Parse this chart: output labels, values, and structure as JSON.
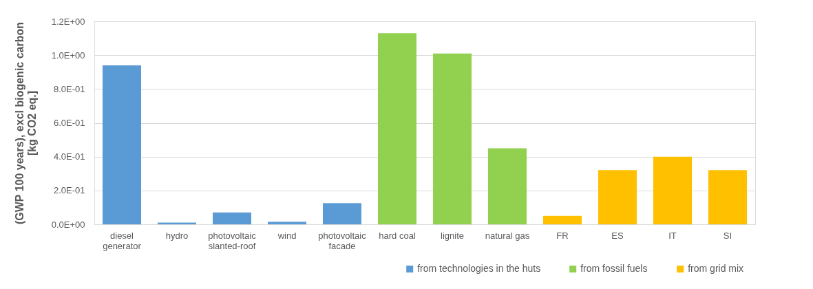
{
  "chart_data": {
    "type": "bar",
    "ylabel": "(GWP 100 years), excl biogenic carbon\n[kg CO2 eq.]",
    "categories": [
      "diesel\ngenerator",
      "hydro",
      "photovoltaic\nslanted-roof",
      "wind",
      "photovoltaic\nfacade",
      "hard coal",
      "lignite",
      "natural gas",
      "FR",
      "ES",
      "IT",
      "SI"
    ],
    "series": [
      {
        "name": "from technologies in the huts",
        "color": "#5b9bd5",
        "values": [
          0.94,
          0.01,
          0.07,
          0.015,
          0.125,
          null,
          null,
          null,
          null,
          null,
          null,
          null
        ]
      },
      {
        "name": "from fossil fuels",
        "color": "#92d050",
        "values": [
          null,
          null,
          null,
          null,
          null,
          1.13,
          1.01,
          0.45,
          null,
          null,
          null,
          null
        ]
      },
      {
        "name": "from grid mix",
        "color": "#ffc000",
        "values": [
          null,
          null,
          null,
          null,
          null,
          null,
          null,
          null,
          0.05,
          0.32,
          0.4,
          0.32
        ]
      }
    ],
    "ylim": [
      0,
      1.2
    ],
    "yticks": [
      {
        "value": 0,
        "label": "0.0E+00"
      },
      {
        "value": 0.2,
        "label": "2.0E-01"
      },
      {
        "value": 0.4,
        "label": "4.0E-01"
      },
      {
        "value": 0.6,
        "label": "6.0E-01"
      },
      {
        "value": 0.8,
        "label": "8.0E-01"
      },
      {
        "value": 1.0,
        "label": "1.0E+00"
      },
      {
        "value": 1.2,
        "label": "1.2E+00"
      }
    ],
    "grid": "y",
    "legend": "bottom right"
  }
}
